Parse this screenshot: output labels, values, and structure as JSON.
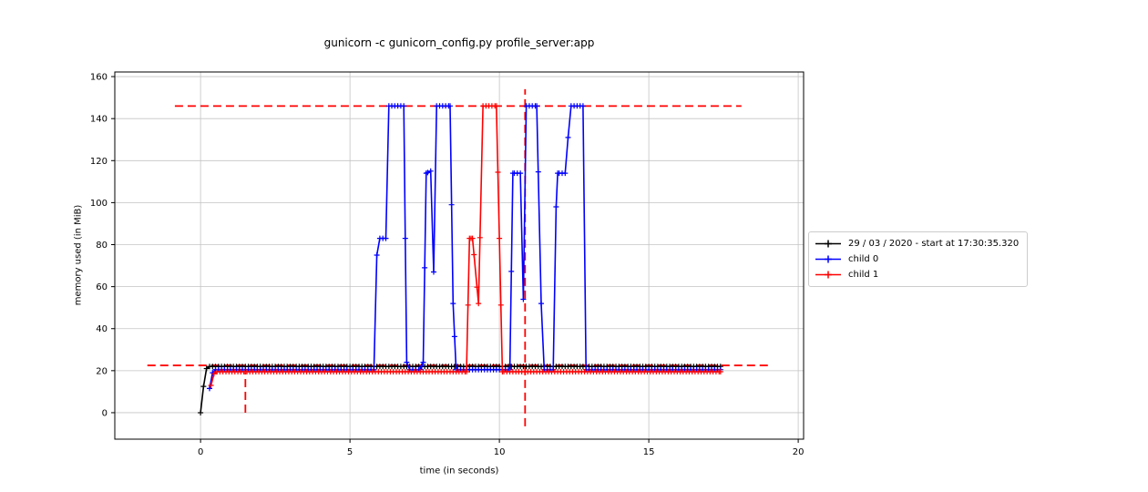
{
  "chart_data": {
    "type": "line",
    "title": "gunicorn -c gunicorn_config.py profile_server:app",
    "xlabel": "time (in seconds)",
    "ylabel": "memory used (in MiB)",
    "xlim": [
      -2.87,
      20.18
    ],
    "ylim": [
      -12.6,
      162.2
    ],
    "xticks": [
      0,
      5,
      10,
      15,
      20
    ],
    "yticks": [
      0,
      20,
      40,
      60,
      80,
      100,
      120,
      140,
      160
    ],
    "grid": true,
    "grid_color": "#b0b0b0",
    "legend_position": "right-outside",
    "marker": "+",
    "sample_interval_s": 0.1,
    "series": [
      {
        "name": "29 / 03 / 2020 - start at 17:30:35.320",
        "color": "#000000",
        "points": [
          [
            0,
            0
          ],
          [
            0.1,
            12.5
          ],
          [
            0.2,
            21
          ],
          [
            0.3,
            22
          ],
          [
            17.4,
            22
          ]
        ]
      },
      {
        "name": "child 0",
        "color": "#0000ff",
        "points": [
          [
            0.3,
            11.5
          ],
          [
            0.4,
            19
          ],
          [
            0.5,
            20.5
          ],
          [
            5.8,
            20.5
          ],
          [
            5.9,
            75
          ],
          [
            6.0,
            83
          ],
          [
            6.2,
            83
          ],
          [
            6.3,
            146
          ],
          [
            6.8,
            146
          ],
          [
            6.85,
            83
          ],
          [
            6.9,
            24
          ],
          [
            7.0,
            20.5
          ],
          [
            7.35,
            20.5
          ],
          [
            7.45,
            24
          ],
          [
            7.55,
            114
          ],
          [
            7.7,
            115
          ],
          [
            7.8,
            67
          ],
          [
            7.9,
            146
          ],
          [
            8.35,
            146
          ],
          [
            8.45,
            52
          ],
          [
            8.55,
            20.5
          ],
          [
            10.35,
            20.5
          ],
          [
            10.45,
            114
          ],
          [
            10.7,
            114
          ],
          [
            10.8,
            54
          ],
          [
            10.9,
            146
          ],
          [
            11.25,
            146
          ],
          [
            11.4,
            52
          ],
          [
            11.5,
            20.5
          ],
          [
            11.8,
            20.5
          ],
          [
            11.9,
            98
          ],
          [
            11.95,
            114
          ],
          [
            12.2,
            114
          ],
          [
            12.3,
            131
          ],
          [
            12.4,
            146
          ],
          [
            12.8,
            146
          ],
          [
            12.9,
            20.5
          ],
          [
            17.4,
            20.5
          ]
        ]
      },
      {
        "name": "child 1",
        "color": "#ff0000",
        "points": [
          [
            0.35,
            13
          ],
          [
            0.45,
            18.5
          ],
          [
            0.55,
            19.5
          ],
          [
            8.9,
            19.5
          ],
          [
            9.0,
            83
          ],
          [
            9.1,
            83
          ],
          [
            9.3,
            52
          ],
          [
            9.45,
            146
          ],
          [
            9.9,
            146
          ],
          [
            10.0,
            83
          ],
          [
            10.1,
            19.5
          ],
          [
            17.4,
            19.5
          ]
        ]
      }
    ],
    "annotations": [
      {
        "type": "hline",
        "y": 146,
        "x_start": -0.86,
        "x_end": 18.1,
        "color": "#ff0000",
        "style": "dashed"
      },
      {
        "type": "hline",
        "y": 22.5,
        "x_start": -1.78,
        "x_end": 19.1,
        "color": "#ff0000",
        "style": "dashed"
      },
      {
        "type": "vline",
        "x": 1.5,
        "y_start": 0,
        "y_end": 19,
        "color": "#ff0000",
        "style": "dashed"
      },
      {
        "type": "vline",
        "x": 10.86,
        "y_start": -6.5,
        "y_end": 154,
        "color": "#ff0000",
        "style": "dashed"
      }
    ]
  }
}
